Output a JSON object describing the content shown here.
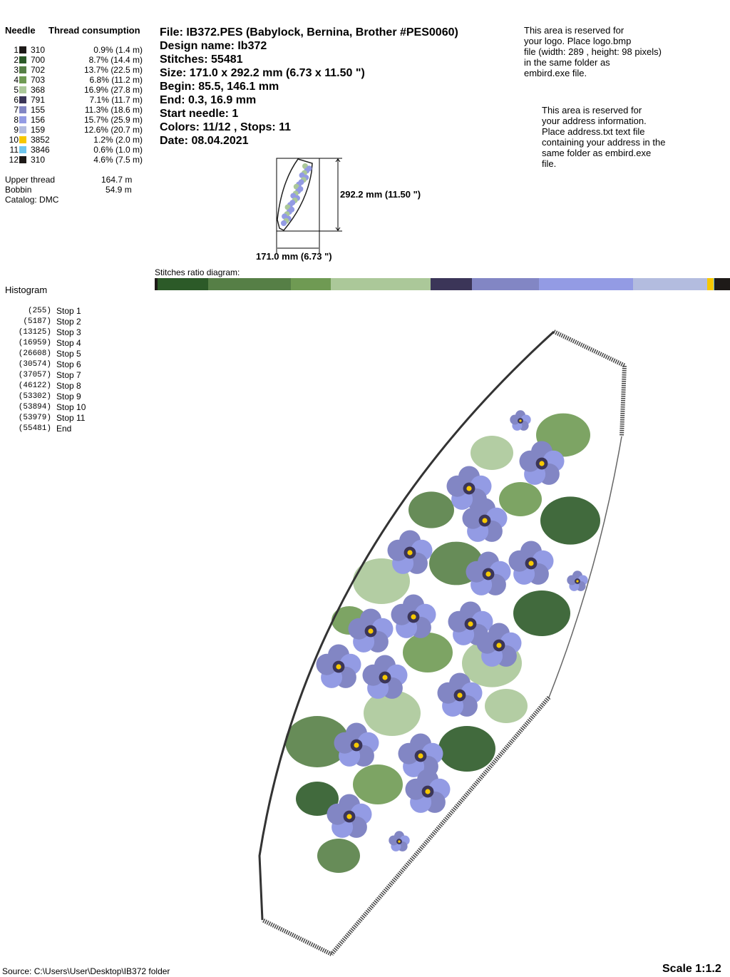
{
  "thread_table": {
    "needle_header": "Needle",
    "consumption_header": "Thread consumption",
    "rows": [
      {
        "needle": "1",
        "code": "310",
        "color": "#1e1a18",
        "consumption": "0.9% (1.4 m)"
      },
      {
        "needle": "2",
        "code": "700",
        "color": "#2c5a28",
        "consumption": "8.7% (14.4 m)"
      },
      {
        "needle": "3",
        "code": "702",
        "color": "#567f46",
        "consumption": "13.7% (22.5 m)"
      },
      {
        "needle": "4",
        "code": "703",
        "color": "#6f9a53",
        "consumption": "6.8% (11.2 m)"
      },
      {
        "needle": "5",
        "code": "368",
        "color": "#abc899",
        "consumption": "16.9% (27.8 m)"
      },
      {
        "needle": "6",
        "code": "791",
        "color": "#3b3558",
        "consumption": "7.1% (11.7 m)"
      },
      {
        "needle": "7",
        "code": "155",
        "color": "#8286c4",
        "consumption": "11.3% (18.6 m)"
      },
      {
        "needle": "8",
        "code": "156",
        "color": "#939be4",
        "consumption": "15.7% (25.9 m)"
      },
      {
        "needle": "9",
        "code": "159",
        "color": "#b3bcdf",
        "consumption": "12.6% (20.7 m)"
      },
      {
        "needle": "10",
        "code": "3852",
        "color": "#f6c800",
        "consumption": "1.2% (2.0 m)"
      },
      {
        "needle": "11",
        "code": "3846",
        "color": "#6ec6ee",
        "consumption": "0.6% (1.0 m)"
      },
      {
        "needle": "12",
        "code": "310",
        "color": "#1e1a18",
        "consumption": "4.6% (7.5 m)"
      }
    ],
    "upper_thread_label": "Upper thread",
    "upper_thread_value": "164.7 m",
    "bobbin_label": "Bobbin",
    "bobbin_value": "54.9 m",
    "catalog": "Catalog: DMC"
  },
  "design_info": {
    "file": "File: IB372.PES  (Babylock, Bernina, Brother #PES0060)",
    "design_name": "Design name: Ib372",
    "stitches": "Stitches: 55481",
    "size": "Size: 171.0 x 292.2 mm (6.73 x 11.50 \")",
    "begin": "Begin: 85.5, 146.1 mm",
    "end": "End: 0.3, 16.9 mm",
    "start_needle": "Start needle: 1",
    "colors_stops": "Colors: 11/12 , Stops: 11",
    "date": "Date: 08.04.2021"
  },
  "logo_note": [
    "This area is reserved for",
    "your logo. Place logo.bmp",
    "file (width: 289 , height: 98 pixels)",
    "in the same folder as",
    "embird.exe file."
  ],
  "address_note": [
    "This area is reserved for",
    "your address information.",
    "Place address.txt text file",
    "containing your address in the",
    "same folder as embird.exe",
    "file."
  ],
  "thumbnail": {
    "height_label": "292.2 mm (11.50 \")",
    "width_label": "171.0 mm (6.73 \")"
  },
  "ratio_diagram_label": "Stitches ratio diagram:",
  "histogram": {
    "title": "Histogram",
    "entries": [
      {
        "count": "(255)",
        "label": "Stop 1",
        "value": 255
      },
      {
        "count": "(5187)",
        "label": "Stop 2",
        "value": 5187
      },
      {
        "count": "(13125)",
        "label": "Stop 3",
        "value": 13125
      },
      {
        "count": "(16959)",
        "label": "Stop 4",
        "value": 16959
      },
      {
        "count": "(26608)",
        "label": "Stop 5",
        "value": 26608
      },
      {
        "count": "(30574)",
        "label": "Stop 6",
        "value": 30574
      },
      {
        "count": "(37057)",
        "label": "Stop 7",
        "value": 37057
      },
      {
        "count": "(46122)",
        "label": "Stop 8",
        "value": 46122
      },
      {
        "count": "(53302)",
        "label": "Stop 9",
        "value": 53302
      },
      {
        "count": "(53894)",
        "label": "Stop 10",
        "value": 53894
      },
      {
        "count": "(53979)",
        "label": "Stop 11",
        "value": 53979
      },
      {
        "count": "(55481)",
        "label": "End",
        "value": 55481
      }
    ]
  },
  "footer": {
    "source": "Source: C:\\Users\\User\\Desktop\\IB372 folder",
    "scale": "Scale 1:1.2"
  }
}
